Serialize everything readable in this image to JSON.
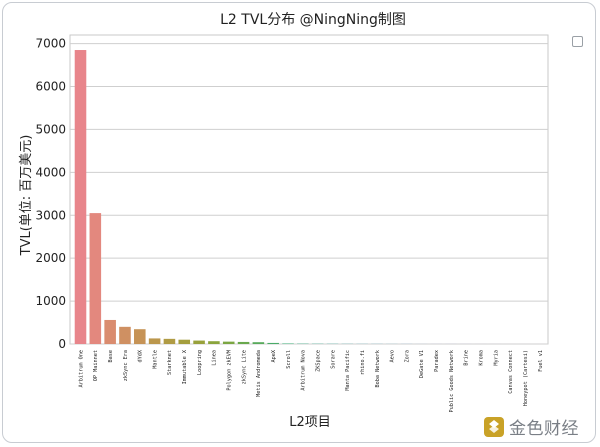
{
  "chart_data": {
    "type": "bar",
    "title": "L2 TVL分布 @NingNing制图",
    "xlabel": "L2项目",
    "ylabel": "TVL(单位: 百万美元)",
    "ylim": [
      0,
      7200
    ],
    "yticks": [
      0,
      1000,
      2000,
      3000,
      4000,
      5000,
      6000,
      7000
    ],
    "grid": true,
    "categories": [
      "Arbitrum One",
      "OP Mainnet",
      "Base",
      "zkSync Era",
      "dYdX",
      "Mantle",
      "Starknet",
      "Immutable X",
      "Loopring",
      "Linea",
      "Polygon zkEVM",
      "zkSync Lite",
      "Metis Andromeda",
      "ApeX",
      "Scroll",
      "Arbitrum Nova",
      "ZKSpace",
      "Sorare",
      "Manta Pacific",
      "rhino.fi",
      "Boba Network",
      "Aevo",
      "Zora",
      "DeGate V1",
      "Paradex",
      "Public Goods Network",
      "Brine",
      "Kroma",
      "Myria",
      "Canvas Connect",
      "Honeypot (Cartesi)",
      "Fuel v1"
    ],
    "values": [
      6850,
      3050,
      560,
      400,
      345,
      130,
      120,
      100,
      80,
      65,
      55,
      48,
      42,
      25,
      12,
      8,
      6,
      5,
      4,
      3,
      3,
      2,
      2,
      1,
      1,
      1,
      1,
      0.5,
      0.5,
      0.3,
      0.2,
      0.1
    ],
    "colors": [
      "#e8858b",
      "#e3887e",
      "#da8c6f",
      "#cf9062",
      "#c69356",
      "#bb974c",
      "#b09b44",
      "#a49e3e",
      "#98a13b",
      "#8aa43c",
      "#7ba642",
      "#69a84d",
      "#58aa5b",
      "#4aab69",
      "#40ab77",
      "#3cab84",
      "#3aab90",
      "#3aab9c",
      "#3caaa8",
      "#40a9b4",
      "#46a7c0",
      "#4ea4cb",
      "#5aa0d6",
      "#699bde",
      "#7b95e4",
      "#8d8ee8",
      "#9f87e8",
      "#b181e4",
      "#c17cdc",
      "#ce79d1",
      "#d978c3",
      "#e179b4"
    ]
  },
  "watermark": {
    "text": "金色财经"
  }
}
